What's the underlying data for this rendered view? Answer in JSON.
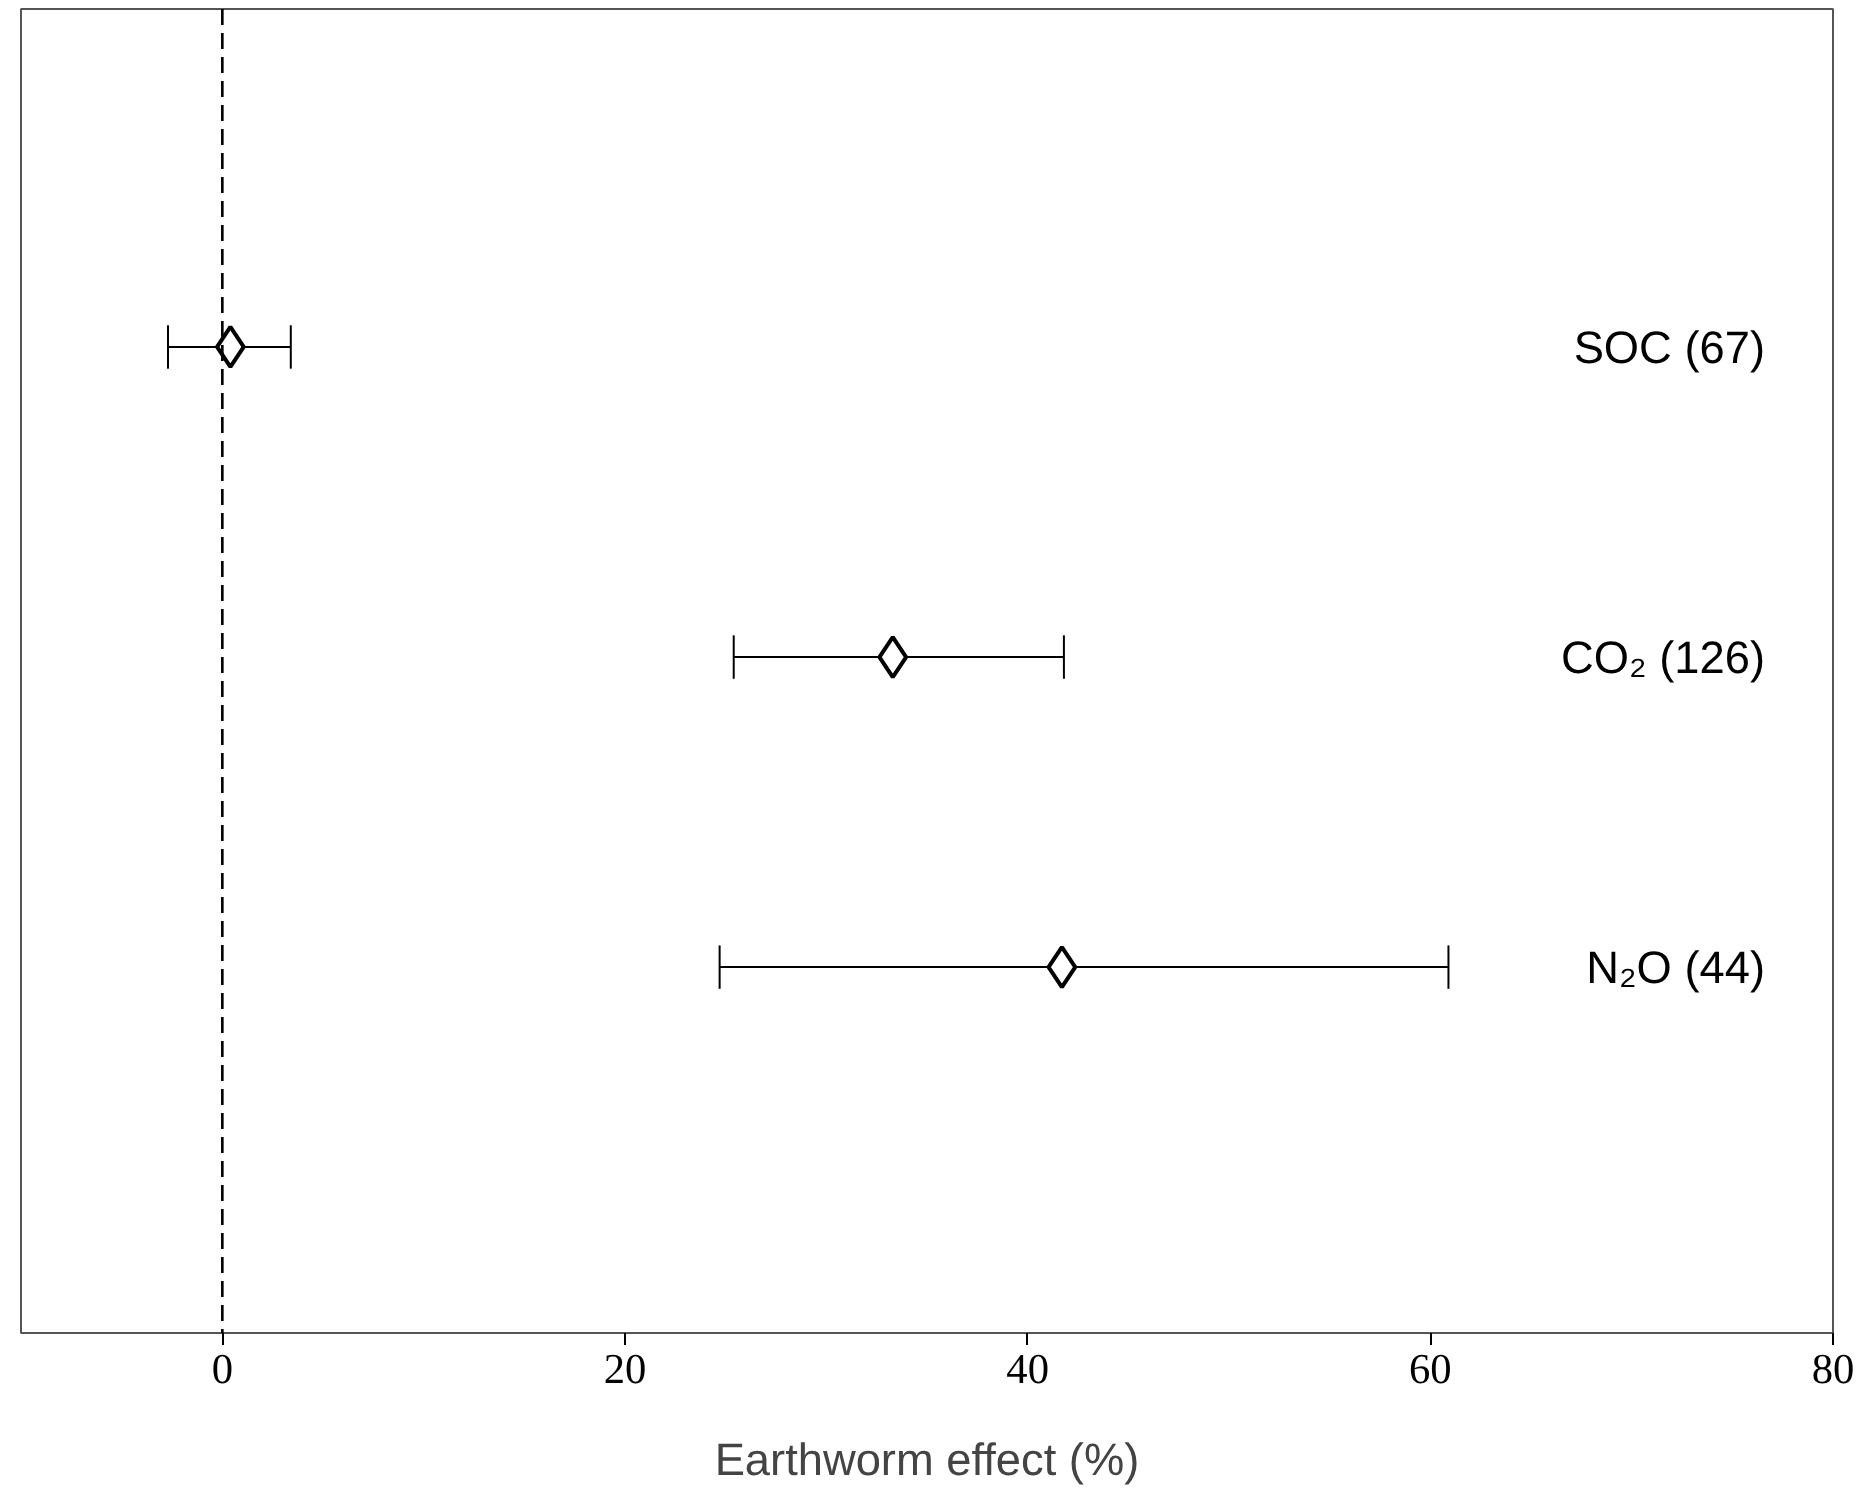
{
  "chart_data": {
    "type": "scatter",
    "orientation": "horizontal",
    "xlabel": "Earthworm effect (%)",
    "categories": [
      "SOC (67)",
      "CO₂ (126)",
      "N₂O (44)"
    ],
    "values": [
      0.4,
      33.3,
      41.7
    ],
    "errors": [
      [
        -2.7,
        3.4
      ],
      [
        25.4,
        41.8
      ],
      [
        24.7,
        60.9
      ]
    ],
    "color": "#000000",
    "marker": "diamond",
    "xlim": [
      -10,
      80
    ],
    "xticks": [
      0,
      20,
      40,
      60,
      80
    ],
    "ref_lines": [
      {
        "axis": "x",
        "value": 0,
        "line_style": "dashed",
        "color": "#000000"
      }
    ],
    "tick_labels": "x",
    "grid": false
  }
}
